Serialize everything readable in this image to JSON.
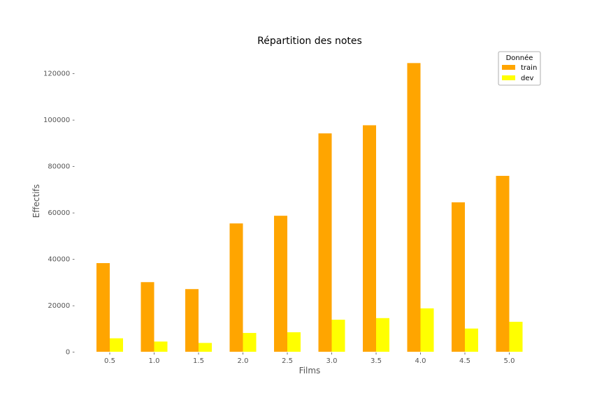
{
  "chart_data": {
    "type": "bar",
    "title": "Répartition des notes",
    "xlabel": "Films",
    "ylabel": "Effectifs",
    "categories": [
      "0.5",
      "1.0",
      "1.5",
      "2.0",
      "2.5",
      "3.0",
      "3.5",
      "4.0",
      "4.5",
      "5.0"
    ],
    "series": [
      {
        "name": "train",
        "color": "#FFA500",
        "values": [
          38200,
          30000,
          27000,
          55300,
          58600,
          94100,
          97600,
          124400,
          64400,
          75800
        ]
      },
      {
        "name": "dev",
        "color": "#FFFF00",
        "values": [
          5800,
          4400,
          3800,
          8100,
          8400,
          13800,
          14500,
          18700,
          10000,
          12900
        ]
      }
    ],
    "yticks": [
      "0",
      "20000",
      "40000",
      "60000",
      "80000",
      "100000",
      "120000"
    ],
    "ylim": [
      0,
      130000
    ],
    "legend": {
      "title": "Donnée",
      "position": "top-right"
    },
    "grid": false
  }
}
